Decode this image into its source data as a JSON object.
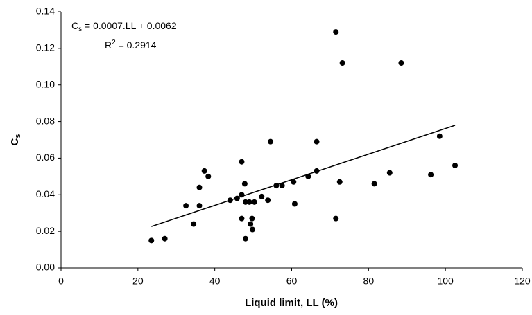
{
  "chart_data": {
    "type": "scatter",
    "xlabel": "Liquid limit, LL (%)",
    "ylabel": {
      "main": "C",
      "sub": "s"
    },
    "equation": {
      "main": "C",
      "sub": "s",
      "rest": " = 0.0007.LL + 0.0062"
    },
    "r2": {
      "main": "R",
      "sup": "2",
      "rest": " = 0.2914"
    },
    "xlim": [
      0,
      120
    ],
    "xticks": [
      0,
      20,
      40,
      60,
      80,
      100,
      120
    ],
    "ylim": [
      0,
      0.14
    ],
    "yticks": [
      {
        "value": 0,
        "label": "0.00"
      },
      {
        "value": 0.02,
        "label": "0.02"
      },
      {
        "value": 0.04,
        "label": "0.04"
      },
      {
        "value": 0.06,
        "label": "0.06"
      },
      {
        "value": 0.08,
        "label": "0.08"
      },
      {
        "value": 0.1,
        "label": "0.10"
      },
      {
        "value": 0.12,
        "label": "0.12"
      },
      {
        "value": 0.14,
        "label": "0.14"
      }
    ],
    "color": "#000000",
    "x": [
      23.5,
      27,
      32.5,
      34.5,
      36,
      36,
      37.3,
      38.3,
      44,
      45.8,
      47,
      47,
      47,
      47.8,
      48,
      48,
      49,
      49.3,
      49.7,
      49.8,
      50.3,
      52.2,
      53.8,
      54.5,
      56,
      57.5,
      60.5,
      60.8,
      64.3,
      66.5,
      66.5,
      71.5,
      72.5,
      71.5,
      73.2,
      81.5,
      85.5,
      88.5,
      96.2,
      98.5,
      102.5
    ],
    "values": [
      0.015,
      0.016,
      0.034,
      0.024,
      0.044,
      0.034,
      0.053,
      0.05,
      0.037,
      0.038,
      0.058,
      0.04,
      0.027,
      0.046,
      0.036,
      0.016,
      0.036,
      0.024,
      0.027,
      0.021,
      0.036,
      0.039,
      0.037,
      0.069,
      0.045,
      0.045,
      0.047,
      0.035,
      0.05,
      0.069,
      0.053,
      0.027,
      0.047,
      0.129,
      0.112,
      0.046,
      0.052,
      0.112,
      0.051,
      0.072,
      0.056
    ],
    "trendline": {
      "x": [
        23.5,
        102.5
      ],
      "values": [
        0.02265,
        0.07795
      ]
    }
  }
}
